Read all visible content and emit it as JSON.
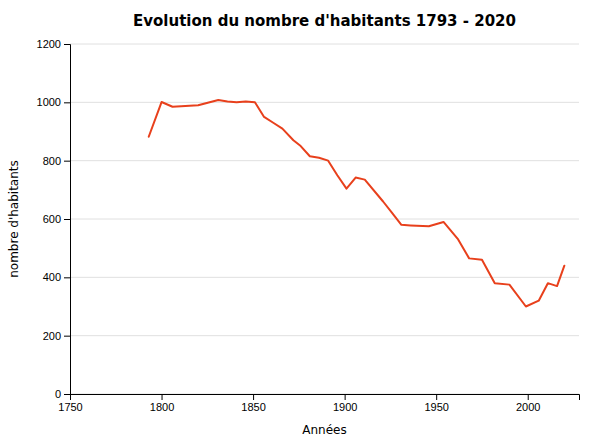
{
  "chart_data": {
    "type": "line",
    "title": "Evolution du nombre d'habitants 1793 - 2020",
    "x_label": "Années",
    "y_label": "nombre d'habitants",
    "x": [
      1793,
      1800,
      1806,
      1820,
      1831,
      1836,
      1841,
      1846,
      1851,
      1856,
      1861,
      1866,
      1872,
      1876,
      1881,
      1886,
      1891,
      1896,
      1901,
      1906,
      1911,
      1921,
      1926,
      1931,
      1936,
      1946,
      1954,
      1962,
      1968,
      1975,
      1982,
      1990,
      1999,
      2006,
      2011,
      2016,
      2020
    ],
    "values": [
      882,
      1001,
      985,
      990,
      1008,
      1003,
      1000,
      1003,
      1000,
      950,
      930,
      910,
      870,
      850,
      815,
      810,
      800,
      750,
      704,
      742,
      735,
      660,
      620,
      580,
      578,
      575,
      590,
      530,
      465,
      460,
      380,
      375,
      300,
      320,
      380,
      370,
      440
    ],
    "color": "#e8401c",
    "xlim": [
      1750,
      2028
    ],
    "ylim": [
      0,
      1200
    ],
    "xticks": [
      1750,
      1800,
      1850,
      1900,
      1950,
      2000
    ],
    "yticks": [
      0,
      200,
      400,
      600,
      800,
      1000,
      1200
    ],
    "grid": true
  }
}
